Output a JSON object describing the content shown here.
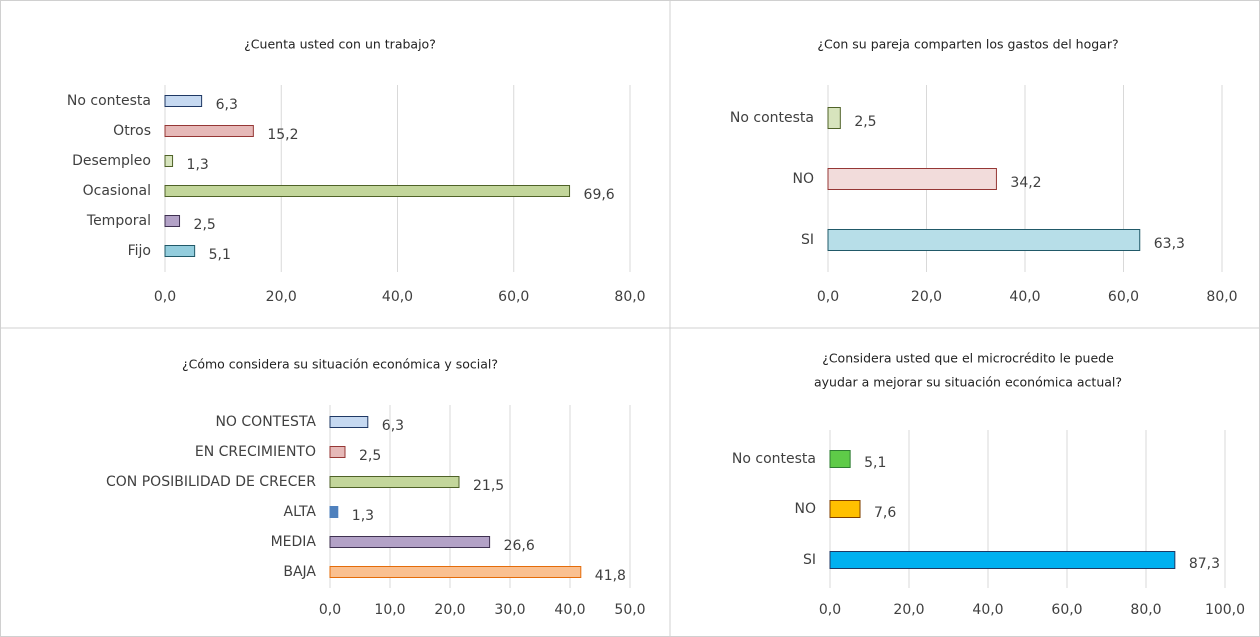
{
  "chart_data": [
    {
      "type": "barh",
      "title": [
        "¿Cuenta usted con un trabajo?"
      ],
      "categories": [
        "No contesta",
        "Otros",
        "Desempleo",
        "Ocasional",
        "Temporal",
        "Fijo"
      ],
      "values": [
        6.3,
        15.2,
        1.3,
        69.6,
        2.5,
        5.1
      ],
      "value_labels": [
        "6,3",
        "15,2",
        "1,3",
        "69,6",
        "2,5",
        "5,1"
      ],
      "colors": [
        "#c6d9f1",
        "#e6b9b8",
        "#d7e4bd",
        "#c3d69b",
        "#b3a2c7",
        "#93cddd"
      ],
      "edgecolors": [
        "#1f3864",
        "#953735",
        "#4f6228",
        "#4f6228",
        "#3f3151",
        "#215968"
      ],
      "xlim": [
        0,
        80
      ],
      "xticks": [
        {
          "value": 0,
          "label": "0,0"
        },
        {
          "value": 20,
          "label": "20,0"
        },
        {
          "value": 40,
          "label": "40,0"
        },
        {
          "value": 60,
          "label": "60,0"
        },
        {
          "value": 80,
          "label": "80,0"
        }
      ],
      "grid": true
    },
    {
      "type": "barh",
      "title": [
        "¿Con su pareja comparten los gastos del hogar?"
      ],
      "categories": [
        "No contesta",
        "NO",
        "SI"
      ],
      "values": [
        2.5,
        34.2,
        63.3
      ],
      "value_labels": [
        "2,5",
        "34,2",
        "63,3"
      ],
      "colors": [
        "#d7e4bd",
        "#f2dcdb",
        "#b7dee8"
      ],
      "edgecolors": [
        "#4f6228",
        "#953735",
        "#215968"
      ],
      "xlim": [
        0,
        80
      ],
      "xticks": [
        {
          "value": 0,
          "label": "0,0"
        },
        {
          "value": 20,
          "label": "20,0"
        },
        {
          "value": 40,
          "label": "40,0"
        },
        {
          "value": 60,
          "label": "60,0"
        },
        {
          "value": 80,
          "label": "80,0"
        }
      ],
      "grid": true
    },
    {
      "type": "barh",
      "title": [
        "¿Cómo considera su situación  económica y social?"
      ],
      "categories": [
        "NO CONTESTA",
        "EN CRECIMIENTO",
        "CON POSIBILIDAD DE CRECER",
        "ALTA",
        "MEDIA",
        "BAJA"
      ],
      "values": [
        6.3,
        2.5,
        21.5,
        1.3,
        26.6,
        41.8
      ],
      "value_labels": [
        "6,3",
        "2,5",
        "21,5",
        "1,3",
        "26,6",
        "41,8"
      ],
      "colors": [
        "#c6d9f1",
        "#e6b9b8",
        "#c3d69b",
        "#4f81bd",
        "#b3a2c7",
        "#fac090"
      ],
      "edgecolors": [
        "#1f3864",
        "#953735",
        "#4f6228",
        "#4f81bd",
        "#3f3151",
        "#e46c0a"
      ],
      "xlim": [
        0,
        50
      ],
      "xticks": [
        {
          "value": 0,
          "label": "0,0"
        },
        {
          "value": 10,
          "label": "10,0"
        },
        {
          "value": 20,
          "label": "20,0"
        },
        {
          "value": 30,
          "label": "30,0"
        },
        {
          "value": 40,
          "label": "40,0"
        },
        {
          "value": 50,
          "label": "50,0"
        }
      ],
      "grid": true
    },
    {
      "type": "barh",
      "title": [
        "¿Considera usted que el microcrédito le puede",
        "ayudar a mejorar su situación económica actual?"
      ],
      "categories": [
        "No contesta",
        "NO",
        "SI"
      ],
      "values": [
        5.1,
        7.6,
        87.3
      ],
      "value_labels": [
        "5,1",
        "7,6",
        "87,3"
      ],
      "colors": [
        "#5ecb48",
        "#ffc000",
        "#00b0f0"
      ],
      "edgecolors": [
        "#2e7d32",
        "#7f3f00",
        "#1f3864"
      ],
      "xlim": [
        0,
        100
      ],
      "xticks": [
        {
          "value": 0,
          "label": "0,0"
        },
        {
          "value": 20,
          "label": "20,0"
        },
        {
          "value": 40,
          "label": "40,0"
        },
        {
          "value": 60,
          "label": "60,0"
        },
        {
          "value": 80,
          "label": "80,0"
        },
        {
          "value": 100,
          "label": "100,0"
        }
      ],
      "grid": true
    }
  ]
}
